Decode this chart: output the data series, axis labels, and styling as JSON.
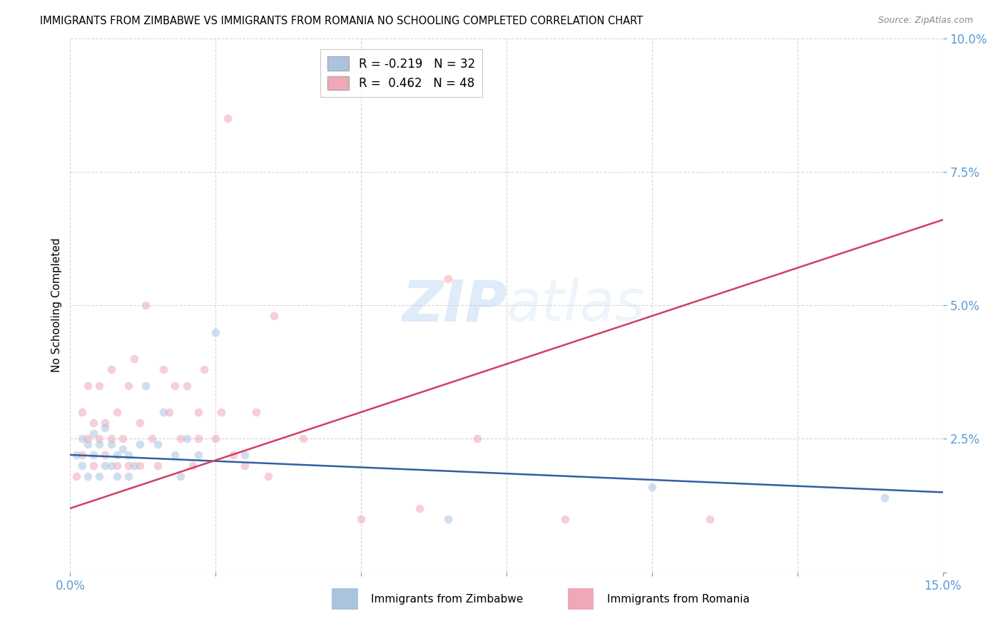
{
  "title": "IMMIGRANTS FROM ZIMBABWE VS IMMIGRANTS FROM ROMANIA NO SCHOOLING COMPLETED CORRELATION CHART",
  "source": "Source: ZipAtlas.com",
  "ylabel": "No Schooling Completed",
  "xlim": [
    0.0,
    0.15
  ],
  "ylim": [
    0.0,
    0.1
  ],
  "watermark": "ZIPatlas",
  "axis_color": "#5b9bd5",
  "grid_color": "#cccccc",
  "zim_color": "#aac4e0",
  "rom_color": "#f0a8b8",
  "zim_line_color": "#3060a0",
  "rom_line_color": "#d04060",
  "marker_size": 70,
  "marker_alpha": 0.55,
  "line_width": 1.8,
  "zim_line_x0": 0.0,
  "zim_line_y0": 0.022,
  "zim_line_x1": 0.15,
  "zim_line_y1": 0.015,
  "rom_line_x0": 0.0,
  "rom_line_y0": 0.012,
  "rom_line_x1": 0.15,
  "rom_line_y1": 0.066,
  "zimbabwe_x": [
    0.001,
    0.002,
    0.002,
    0.003,
    0.003,
    0.004,
    0.004,
    0.005,
    0.005,
    0.006,
    0.006,
    0.007,
    0.007,
    0.008,
    0.008,
    0.009,
    0.01,
    0.01,
    0.011,
    0.012,
    0.013,
    0.015,
    0.016,
    0.018,
    0.019,
    0.02,
    0.022,
    0.025,
    0.03,
    0.065,
    0.1,
    0.14
  ],
  "zimbabwe_y": [
    0.022,
    0.025,
    0.02,
    0.024,
    0.018,
    0.026,
    0.022,
    0.024,
    0.018,
    0.027,
    0.02,
    0.024,
    0.02,
    0.022,
    0.018,
    0.023,
    0.022,
    0.018,
    0.02,
    0.024,
    0.035,
    0.024,
    0.03,
    0.022,
    0.018,
    0.025,
    0.022,
    0.045,
    0.022,
    0.01,
    0.016,
    0.014
  ],
  "romania_x": [
    0.001,
    0.002,
    0.002,
    0.003,
    0.003,
    0.004,
    0.004,
    0.005,
    0.005,
    0.006,
    0.006,
    0.007,
    0.007,
    0.008,
    0.008,
    0.009,
    0.01,
    0.01,
    0.011,
    0.012,
    0.012,
    0.013,
    0.014,
    0.015,
    0.016,
    0.017,
    0.018,
    0.019,
    0.02,
    0.021,
    0.022,
    0.022,
    0.023,
    0.025,
    0.026,
    0.027,
    0.028,
    0.03,
    0.032,
    0.034,
    0.035,
    0.04,
    0.05,
    0.06,
    0.065,
    0.07,
    0.085,
    0.11
  ],
  "romania_y": [
    0.018,
    0.03,
    0.022,
    0.035,
    0.025,
    0.028,
    0.02,
    0.035,
    0.025,
    0.022,
    0.028,
    0.038,
    0.025,
    0.03,
    0.02,
    0.025,
    0.035,
    0.02,
    0.04,
    0.028,
    0.02,
    0.05,
    0.025,
    0.02,
    0.038,
    0.03,
    0.035,
    0.025,
    0.035,
    0.02,
    0.03,
    0.025,
    0.038,
    0.025,
    0.03,
    0.085,
    0.022,
    0.02,
    0.03,
    0.018,
    0.048,
    0.025,
    0.01,
    0.012,
    0.055,
    0.025,
    0.01,
    0.01
  ],
  "legend_zim_label_r": "R = -0.219",
  "legend_zim_label_n": "N = 32",
  "legend_rom_label_r": "R =  0.462",
  "legend_rom_label_n": "N = 48"
}
